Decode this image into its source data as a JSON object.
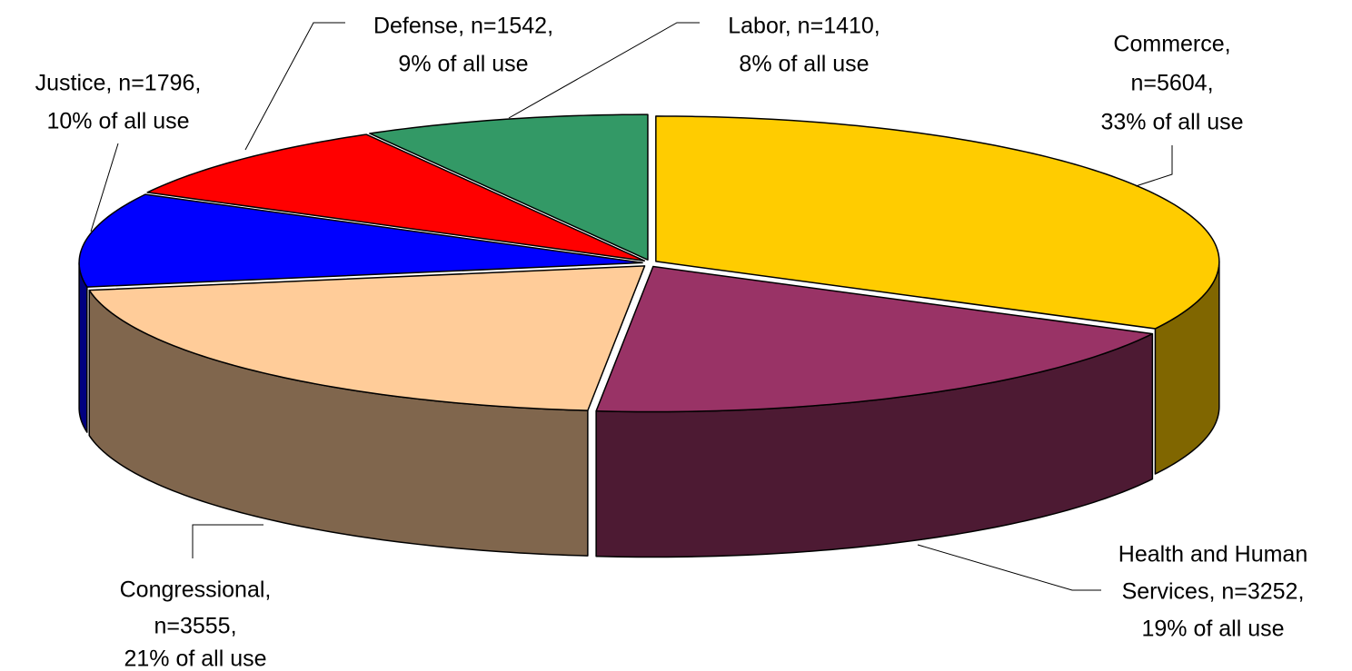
{
  "chart_data": {
    "type": "pie3d",
    "categories": [
      "Commerce",
      "Health and Human Services",
      "Congressional",
      "Justice",
      "Defense",
      "Labor"
    ],
    "values": [
      5604,
      3252,
      3555,
      1796,
      1542,
      1410
    ],
    "label_lines": [
      [
        "Commerce,",
        "n=5604,",
        "33% of all use"
      ],
      [
        "Health and Human",
        "Services, n=3252,",
        "19% of all use"
      ],
      [
        "Congressional,",
        "n=3555,",
        "21% of all use"
      ],
      [
        "Justice, n=1796,",
        "10% of all use"
      ],
      [
        "Defense, n=1542,",
        "9% of all use"
      ],
      [
        "Labor, n=1410,",
        "8% of all use"
      ]
    ],
    "colors": [
      "#ffcc00",
      "#993366",
      "#ffcc99",
      "#0000ff",
      "#ff0000",
      "#339966"
    ],
    "side_colors": [
      "#806600",
      "#4d1a33",
      "#80664d",
      "#000080",
      "#800000",
      "#1a4d33"
    ]
  }
}
